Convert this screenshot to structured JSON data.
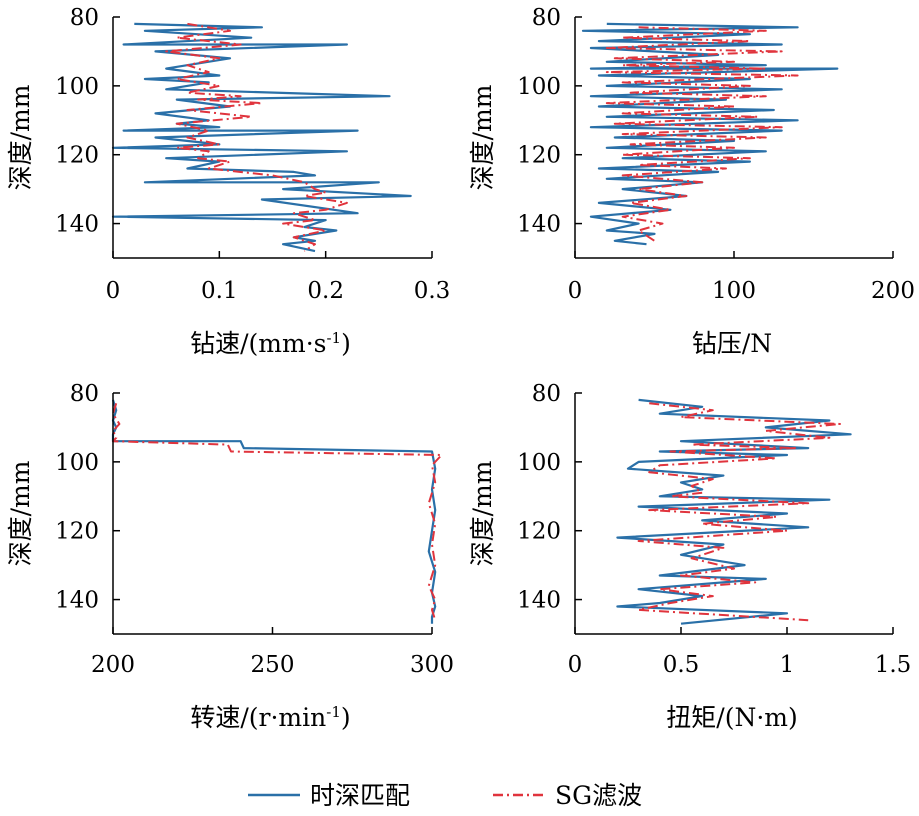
{
  "colors": {
    "series_a": "#2a70a8",
    "series_b": "#e0343d",
    "axis": "#000000"
  },
  "legend": {
    "items": [
      {
        "label": "时深匹配",
        "color": "#2a70a8",
        "style": "solid"
      },
      {
        "label": "SG滤波",
        "color": "#e0343d",
        "style": "dashdot"
      }
    ],
    "placement": "bottom-center"
  },
  "chart_data": [
    {
      "type": "line",
      "xlabel": "钻速/(mm·s-1)",
      "xlabel_main": "钻速/(mm·s",
      "xlabel_sup": "-1",
      "xlabel_tail": ")",
      "ylabel": "深度/mm",
      "xlim": [
        0,
        0.3
      ],
      "ylim": [
        80,
        150
      ],
      "y_inverted": true,
      "xticks": [
        0,
        0.1,
        0.2,
        0.3
      ],
      "xtick_labels": [
        "0",
        "0.1",
        "0.2",
        "0.3"
      ],
      "yticks": [
        80,
        100,
        120,
        140
      ],
      "ytick_labels": [
        "80",
        "100",
        "120",
        "140"
      ],
      "series": [
        {
          "style": "solid",
          "color": "#2a70a8",
          "x": [
            0.02,
            0.14,
            0.03,
            0.13,
            0.01,
            0.22,
            0.04,
            0.11,
            0.05,
            0.1,
            0.03,
            0.09,
            0.05,
            0.26,
            0.06,
            0.11,
            0.04,
            0.09,
            0.06,
            0.1,
            0.01,
            0.23,
            0.04,
            0.1,
            0.0,
            0.22,
            0.05,
            0.1,
            0.07,
            0.17,
            0.19,
            0.03,
            0.25,
            0.16,
            0.28,
            0.14,
            0.23,
            0.0,
            0.2,
            0.18,
            0.21,
            0.17,
            0.19,
            0.16,
            0.19
          ],
          "y": [
            82,
            83,
            84,
            86,
            88,
            88,
            90,
            92,
            95,
            97,
            98,
            99,
            101,
            103,
            104,
            106,
            108,
            110,
            111,
            112,
            113,
            113,
            115,
            117,
            118,
            119,
            121,
            122,
            124,
            125,
            126,
            128,
            128,
            130,
            132,
            133,
            137,
            138,
            139,
            141,
            142,
            144,
            145,
            146,
            148
          ]
        },
        {
          "style": "dashdot",
          "color": "#e0343d",
          "x": [
            0.07,
            0.11,
            0.06,
            0.12,
            0.05,
            0.1,
            0.07,
            0.09,
            0.06,
            0.1,
            0.07,
            0.12,
            0.08,
            0.14,
            0.07,
            0.13,
            0.06,
            0.09,
            0.07,
            0.1,
            0.06,
            0.09,
            0.08,
            0.11,
            0.09,
            0.15,
            0.18,
            0.19,
            0.2,
            0.18,
            0.22,
            0.2,
            0.17,
            0.19,
            0.16,
            0.2,
            0.17,
            0.19,
            0.18
          ],
          "y": [
            82,
            84,
            86,
            88,
            90,
            92,
            94,
            96,
            98,
            100,
            102,
            103,
            104,
            105,
            107,
            109,
            111,
            113,
            115,
            117,
            118,
            119,
            121,
            122,
            124,
            126,
            128,
            130,
            131,
            132,
            134,
            136,
            137,
            139,
            140,
            142,
            144,
            146,
            148
          ]
        }
      ]
    },
    {
      "type": "line",
      "xlabel": "钻压/N",
      "ylabel": "深度/mm",
      "xlim": [
        0,
        200
      ],
      "ylim": [
        80,
        150
      ],
      "y_inverted": true,
      "xticks": [
        0,
        100,
        200
      ],
      "xtick_labels": [
        "0",
        "100",
        "200"
      ],
      "yticks": [
        80,
        100,
        120,
        140
      ],
      "ytick_labels": [
        "80",
        "100",
        "120",
        "140"
      ],
      "series": [
        {
          "style": "solid",
          "color": "#2a70a8",
          "x": [
            20,
            140,
            5,
            110,
            15,
            130,
            10,
            90,
            20,
            120,
            10,
            165,
            15,
            110,
            20,
            130,
            10,
            95,
            15,
            125,
            20,
            140,
            10,
            130,
            25,
            100,
            20,
            120,
            30,
            110,
            15,
            90,
            20,
            80,
            30,
            70,
            15,
            60,
            10,
            40,
            20,
            50,
            25,
            45
          ],
          "y": [
            82,
            83,
            84,
            85,
            87,
            88,
            89,
            91,
            93,
            94,
            95,
            95,
            97,
            98,
            100,
            101,
            103,
            104,
            106,
            107,
            109,
            110,
            112,
            113,
            115,
            116,
            118,
            119,
            121,
            122,
            124,
            125,
            127,
            128,
            130,
            132,
            134,
            136,
            138,
            140,
            142,
            143,
            145,
            146
          ]
        },
        {
          "style": "dashdot",
          "color": "#e0343d",
          "x": [
            40,
            120,
            30,
            110,
            20,
            130,
            25,
            100,
            30,
            120,
            20,
            140,
            30,
            110,
            35,
            120,
            20,
            100,
            30,
            115,
            25,
            130,
            30,
            120,
            35,
            100,
            30,
            110,
            40,
            95,
            30,
            80,
            40,
            70,
            35,
            60,
            30,
            55,
            40,
            50
          ],
          "y": [
            83,
            84,
            86,
            87,
            89,
            90,
            92,
            93,
            94,
            95,
            96,
            97,
            99,
            100,
            102,
            103,
            105,
            106,
            108,
            109,
            111,
            112,
            114,
            115,
            117,
            118,
            120,
            121,
            123,
            124,
            126,
            128,
            130,
            132,
            134,
            136,
            138,
            140,
            142,
            145
          ]
        }
      ]
    },
    {
      "type": "line",
      "xlabel": "转速/(r·min-1)",
      "xlabel_main": "转速/(r·min",
      "xlabel_sup": "-1",
      "xlabel_tail": ")",
      "ylabel": "深度/mm",
      "xlim": [
        200,
        300
      ],
      "ylim": [
        80,
        150
      ],
      "y_inverted": true,
      "xticks": [
        200,
        250,
        300
      ],
      "xtick_labels": [
        "200",
        "250",
        "300"
      ],
      "yticks": [
        80,
        100,
        120,
        140
      ],
      "ytick_labels": [
        "80",
        "100",
        "120",
        "140"
      ],
      "series": [
        {
          "style": "solid",
          "color": "#2a70a8",
          "x": [
            200,
            201,
            200,
            201,
            200,
            200,
            240,
            241,
            300,
            301,
            300,
            301,
            300,
            299,
            301,
            300,
            301,
            300,
            300
          ],
          "y": [
            82,
            85,
            88,
            90,
            92,
            94,
            94,
            96,
            97,
            102,
            108,
            114,
            120,
            126,
            132,
            138,
            142,
            145,
            147
          ]
        },
        {
          "style": "dashdot",
          "color": "#e0343d",
          "x": [
            201,
            200,
            202,
            200,
            201,
            200,
            236,
            237,
            303,
            300,
            301,
            299,
            301,
            300,
            301,
            299,
            301,
            300,
            301
          ],
          "y": [
            83,
            86,
            89,
            91,
            93,
            94,
            95,
            97,
            98,
            101,
            106,
            112,
            118,
            124,
            130,
            136,
            140,
            143,
            146
          ]
        }
      ]
    },
    {
      "type": "line",
      "xlabel": "扭矩/(N·m)",
      "ylabel": "深度/mm",
      "xlim": [
        0,
        1.5
      ],
      "ylim": [
        80,
        150
      ],
      "y_inverted": true,
      "xticks": [
        0,
        0.5,
        1,
        1.5
      ],
      "xtick_labels": [
        "0",
        "0.5",
        "1",
        "1.5"
      ],
      "yticks": [
        80,
        100,
        120,
        140
      ],
      "ytick_labels": [
        "80",
        "100",
        "120",
        "140"
      ],
      "series": [
        {
          "style": "solid",
          "color": "#2a70a8",
          "x": [
            0.3,
            0.6,
            0.4,
            1.2,
            0.9,
            1.3,
            0.5,
            1.1,
            0.4,
            1.0,
            0.3,
            0.25,
            0.7,
            0.5,
            0.6,
            0.4,
            1.2,
            0.3,
            1.0,
            0.6,
            1.1,
            0.2,
            0.7,
            0.5,
            0.8,
            0.4,
            0.9,
            0.3,
            0.6,
            0.4,
            0.2,
            1.0,
            0.5
          ],
          "y": [
            82,
            84,
            86,
            88,
            90,
            92,
            94,
            96,
            97,
            98,
            100,
            102,
            104,
            106,
            108,
            110,
            111,
            113,
            115,
            117,
            119,
            122,
            124,
            127,
            130,
            133,
            134,
            137,
            139,
            141,
            142,
            144,
            147
          ]
        },
        {
          "style": "dashdot",
          "color": "#e0343d",
          "x": [
            0.35,
            0.65,
            0.5,
            1.25,
            0.9,
            1.2,
            0.55,
            1.05,
            0.45,
            0.95,
            0.4,
            0.35,
            0.65,
            0.55,
            0.6,
            0.45,
            1.1,
            0.35,
            0.95,
            0.6,
            1.0,
            0.3,
            0.7,
            0.55,
            0.75,
            0.5,
            0.85,
            0.4,
            0.65,
            0.45,
            0.3,
            1.1
          ],
          "y": [
            83,
            85,
            87,
            89,
            91,
            93,
            95,
            96,
            97,
            99,
            101,
            103,
            105,
            107,
            109,
            110,
            112,
            114,
            116,
            118,
            120,
            123,
            125,
            128,
            131,
            133,
            135,
            137,
            139,
            141,
            143,
            146
          ]
        }
      ]
    }
  ]
}
